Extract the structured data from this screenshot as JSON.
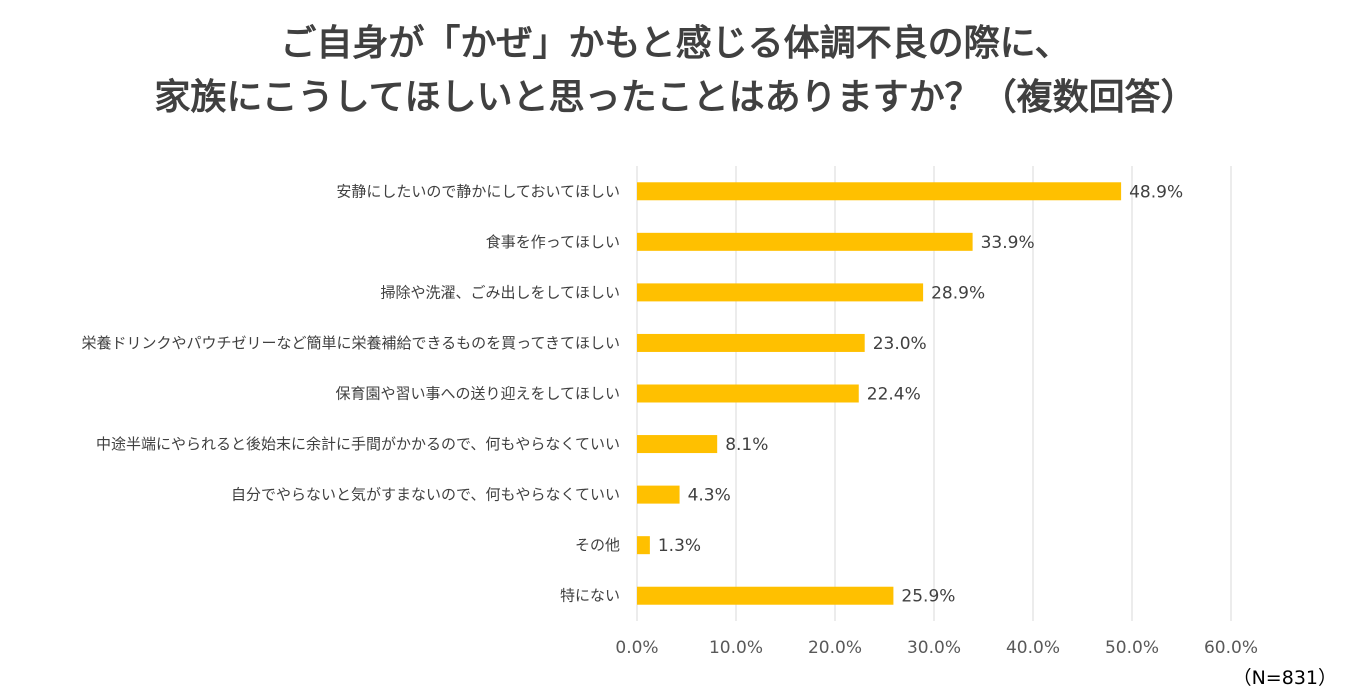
{
  "title": {
    "line1": "ご自身が「かぜ」かもと感じる体調不良の際に、",
    "line2": "家族にこうしてほしいと思ったことはありますか？（複数回答）"
  },
  "note": "（N=831）",
  "colors": {
    "bar": "#FFC000",
    "grid": "#D9D9D9",
    "text": "#404040"
  },
  "chart_data": {
    "type": "bar",
    "orientation": "horizontal",
    "categories": [
      "安静にしたいので静かにしておいてほしい",
      "食事を作ってほしい",
      "掃除や洗濯、ごみ出しをしてほしい",
      "栄養ドリンクやパウチゼリーなど簡単に栄養補給できるものを買ってきてほしい",
      "保育園や習い事への送り迎えをしてほしい",
      "中途半端にやられると後始末に余計に手間がかかるので、何もやらなくていい",
      "自分でやらないと気がすまないので、何もやらなくていい",
      "その他",
      "特にない"
    ],
    "values": [
      48.9,
      33.9,
      28.9,
      23.0,
      22.4,
      8.1,
      4.3,
      1.3,
      25.9
    ],
    "value_labels": [
      "48.9%",
      "33.9%",
      "28.9%",
      "23.0%",
      "22.4%",
      "8.1%",
      "4.3%",
      "1.3%",
      "25.9%"
    ],
    "xlim": [
      0,
      60
    ],
    "xticks": [
      0,
      10,
      20,
      30,
      40,
      50,
      60
    ],
    "xtick_labels": [
      "0.0%",
      "10.0%",
      "20.0%",
      "30.0%",
      "40.0%",
      "50.0%",
      "60.0%"
    ],
    "grid": true,
    "xlabel": "",
    "ylabel": ""
  }
}
